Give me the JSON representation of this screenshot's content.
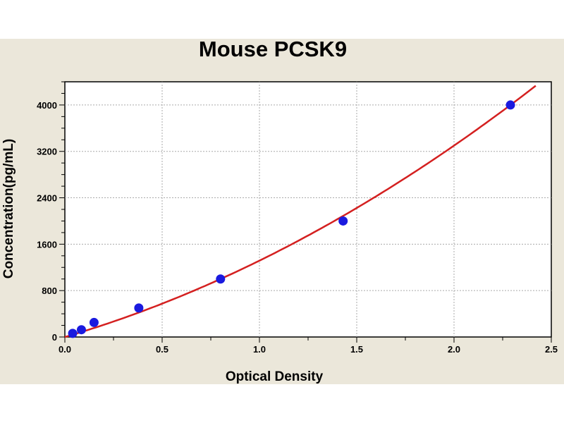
{
  "chart_data": {
    "type": "scatter",
    "title": "Mouse PCSK9",
    "xlabel": "Optical Density",
    "ylabel": "Concentration(pg/mL)",
    "xlim": [
      0,
      2.5
    ],
    "ylim": [
      0,
      4400
    ],
    "xticks": [
      "0.0",
      "0.5",
      "1.0",
      "1.5",
      "2.0",
      "2.5"
    ],
    "yticks": [
      "0",
      "800",
      "1600",
      "2400",
      "3200",
      "4000"
    ],
    "grid": true,
    "series": [
      {
        "points": [
          {
            "x": 0.04,
            "y": 62.5
          },
          {
            "x": 0.085,
            "y": 125
          },
          {
            "x": 0.15,
            "y": 250
          },
          {
            "x": 0.38,
            "y": 500
          },
          {
            "x": 0.8,
            "y": 1000
          },
          {
            "x": 1.43,
            "y": 2000
          },
          {
            "x": 2.29,
            "y": 4000
          }
        ],
        "marker_color": "#1a1adf",
        "fit_line_color": "#d42020"
      }
    ],
    "background_color": "#ebe7da"
  }
}
